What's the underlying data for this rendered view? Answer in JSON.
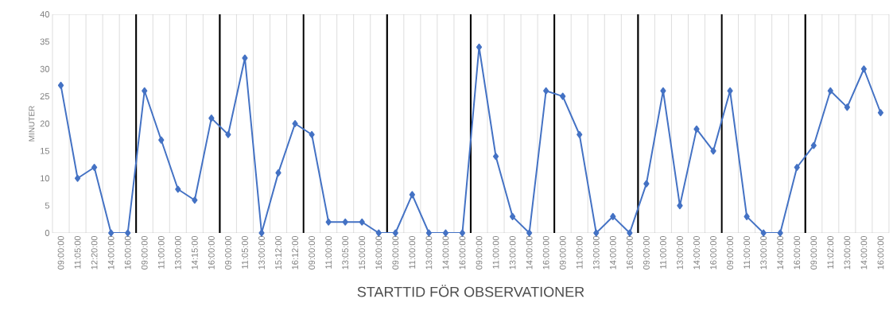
{
  "chart_data": {
    "type": "line",
    "xlabel": "STARTTID FÖR OBSERVATIONER",
    "ylabel": "MINUTER",
    "categories": [
      "09:00:00",
      "11:05:00",
      "12:20:00",
      "14:00:00",
      "16:00:00",
      "09:00:00",
      "11:00:00",
      "13:00:00",
      "14:15:00",
      "16:00:00",
      "09:00:00",
      "11:05:00",
      "13:00:00",
      "15:12:00",
      "16:12:00",
      "09:00:00",
      "11:00:00",
      "13:05:00",
      "15:00:00",
      "16:00:00",
      "09:00:00",
      "11:00:00",
      "13:00:00",
      "14:00:00",
      "16:00:00",
      "09:00:00",
      "11:00:00",
      "13:00:00",
      "14:00:00",
      "16:00:00",
      "09:00:00",
      "11:00:00",
      "13:00:00",
      "14:00:00",
      "16:00:00",
      "09:00:00",
      "11:00:00",
      "13:00:00",
      "14:00:00",
      "16:00:00",
      "09:00:00",
      "11:00:00",
      "13:00:00",
      "14:00:00",
      "16:00:00",
      "09:00:00",
      "11:02:00",
      "13:00:00",
      "14:00:00",
      "16:00:00"
    ],
    "values": [
      27,
      10,
      12,
      0,
      0,
      26,
      17,
      8,
      6,
      21,
      18,
      32,
      0,
      11,
      20,
      18,
      2,
      2,
      2,
      0,
      0,
      7,
      0,
      0,
      0,
      34,
      14,
      3,
      0,
      26,
      25,
      18,
      0,
      3,
      0,
      9,
      26,
      5,
      19,
      15,
      26,
      3,
      0,
      0,
      12,
      16,
      26,
      23,
      30,
      22
    ],
    "color": "#4472c4",
    "marker": "diamond",
    "line_style": "solid",
    "grid": "x",
    "ylim": [
      0,
      40
    ],
    "yticks": [
      0,
      5,
      10,
      15,
      20,
      25,
      30,
      35,
      40
    ]
  }
}
